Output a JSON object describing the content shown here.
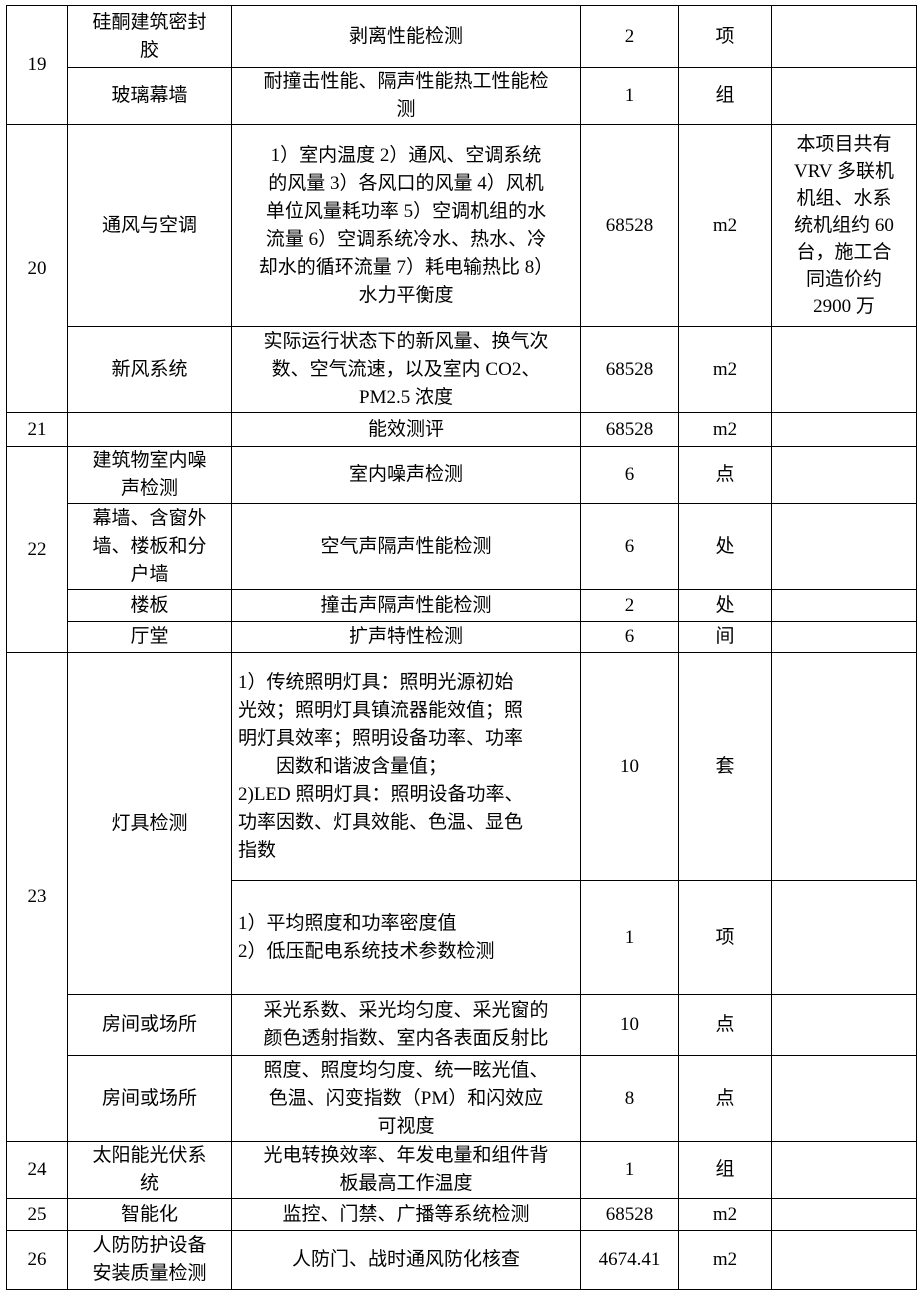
{
  "rows": [
    {
      "no": "19",
      "item": "硅酮建筑密封\n胶",
      "content": "剥离性能检测",
      "qty": "2",
      "unit": "项",
      "note": ""
    },
    {
      "item": "玻璃幕墙",
      "content": "耐撞击性能、隔声性能热工性能检\n测",
      "qty": "1",
      "unit": "组",
      "note": ""
    },
    {
      "no": "20",
      "item": "通风与空调",
      "content": "1）室内温度 2）通风、空调系统\n的风量 3）各风口的风量 4）风机\n单位风量耗功率 5）空调机组的水\n流量 6）空调系统冷水、热水、冷\n却水的循环流量 7）耗电输热比 8）\n水力平衡度",
      "qty": "68528",
      "unit": "m2",
      "note": "本项目共有\nVRV 多联机\n机组、水系\n统机组约 60\n台，施工合\n同造价约\n2900 万"
    },
    {
      "item": "新风系统",
      "content": "实际运行状态下的新风量、换气次\n数、空气流速，以及室内 CO2、\nPM2.5 浓度",
      "qty": "68528",
      "unit": "m2",
      "note": ""
    },
    {
      "no": "21",
      "item": "",
      "content": "能效测评",
      "qty": "68528",
      "unit": "m2",
      "note": ""
    },
    {
      "no": "22",
      "item": "建筑物室内噪\n声检测",
      "content": "室内噪声检测",
      "qty": "6",
      "unit": "点",
      "note": ""
    },
    {
      "item": "幕墙、含窗外\n墙、楼板和分\n户墙",
      "content": "空气声隔声性能检测",
      "qty": "6",
      "unit": "处",
      "note": ""
    },
    {
      "item": "楼板",
      "content": "撞击声隔声性能检测",
      "qty": "2",
      "unit": "处",
      "note": ""
    },
    {
      "item": "厅堂",
      "content": "扩声特性检测",
      "qty": "6",
      "unit": "间",
      "note": ""
    },
    {
      "no": "23",
      "item": "灯具检测",
      "content": "1）传统照明灯具：照明光源初始\n光效；照明灯具镇流器能效值；照\n明灯具效率；照明设备功率、功率\n        因数和谐波含量值；\n2)LED 照明灯具：照明设备功率、\n功率因数、灯具效能、色温、显色\n指数",
      "qty": "10",
      "unit": "套",
      "note": ""
    },
    {
      "content": "1）平均照度和功率密度值\n2）低压配电系统技术参数检测",
      "qty": "1",
      "unit": "项",
      "note": ""
    },
    {
      "item": "房间或场所",
      "content": "采光系数、采光均匀度、采光窗的\n颜色透射指数、室内各表面反射比",
      "qty": "10",
      "unit": "点",
      "note": ""
    },
    {
      "item": "房间或场所",
      "content": "照度、照度均匀度、统一眩光值、\n色温、闪变指数（PM）和闪效应\n可视度",
      "qty": "8",
      "unit": "点",
      "note": ""
    },
    {
      "no": "24",
      "item": "太阳能光伏系\n统",
      "content": "光电转换效率、年发电量和组件背\n板最高工作温度",
      "qty": "1",
      "unit": "组",
      "note": ""
    },
    {
      "no": "25",
      "item": "智能化",
      "content": "监控、门禁、广播等系统检测",
      "qty": "68528",
      "unit": "m2",
      "note": ""
    },
    {
      "no": "26",
      "item": "人防防护设备\n安装质量检测",
      "content": "人防门、战时通风防化核查",
      "qty": "4674.41",
      "unit": "m2",
      "note": ""
    }
  ]
}
